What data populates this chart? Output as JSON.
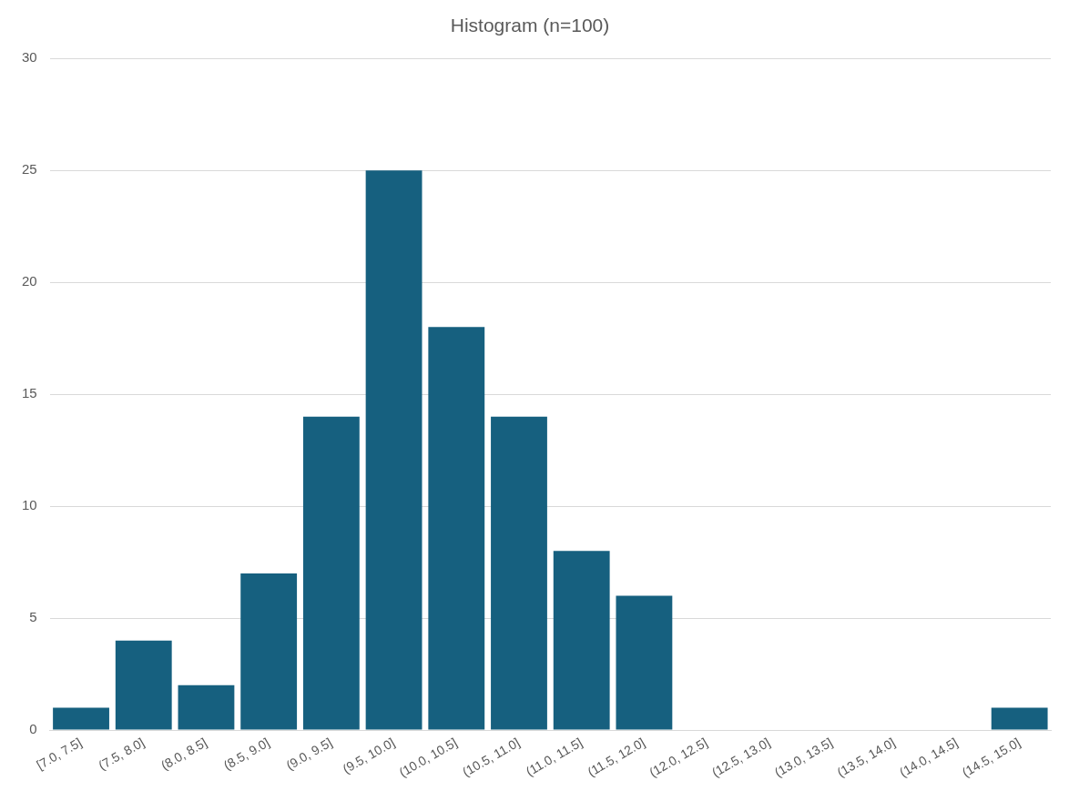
{
  "chart_data": {
    "type": "bar",
    "title": "Histogram (n=100)",
    "categories": [
      "[7.0, 7.5]",
      "(7.5, 8.0]",
      "(8.0, 8.5]",
      "(8.5, 9.0]",
      "(9.0, 9.5]",
      "(9.5, 10.0]",
      "(10.0, 10.5]",
      "(10.5, 11.0]",
      "(11.0, 11.5]",
      "(11.5, 12.0]",
      "(12.0, 12.5]",
      "(12.5, 13.0]",
      "(13.0, 13.5]",
      "(13.5, 14.0]",
      "(14.0, 14.5]",
      "(14.5, 15.0]"
    ],
    "values": [
      1,
      4,
      2,
      7,
      14,
      25,
      18,
      14,
      8,
      6,
      0,
      0,
      0,
      0,
      0,
      1
    ],
    "color": "#16607f",
    "ylim": [
      0,
      30
    ],
    "yticks": [
      0,
      5,
      10,
      15,
      20,
      25,
      30
    ],
    "grid": "y",
    "legend": false
  }
}
